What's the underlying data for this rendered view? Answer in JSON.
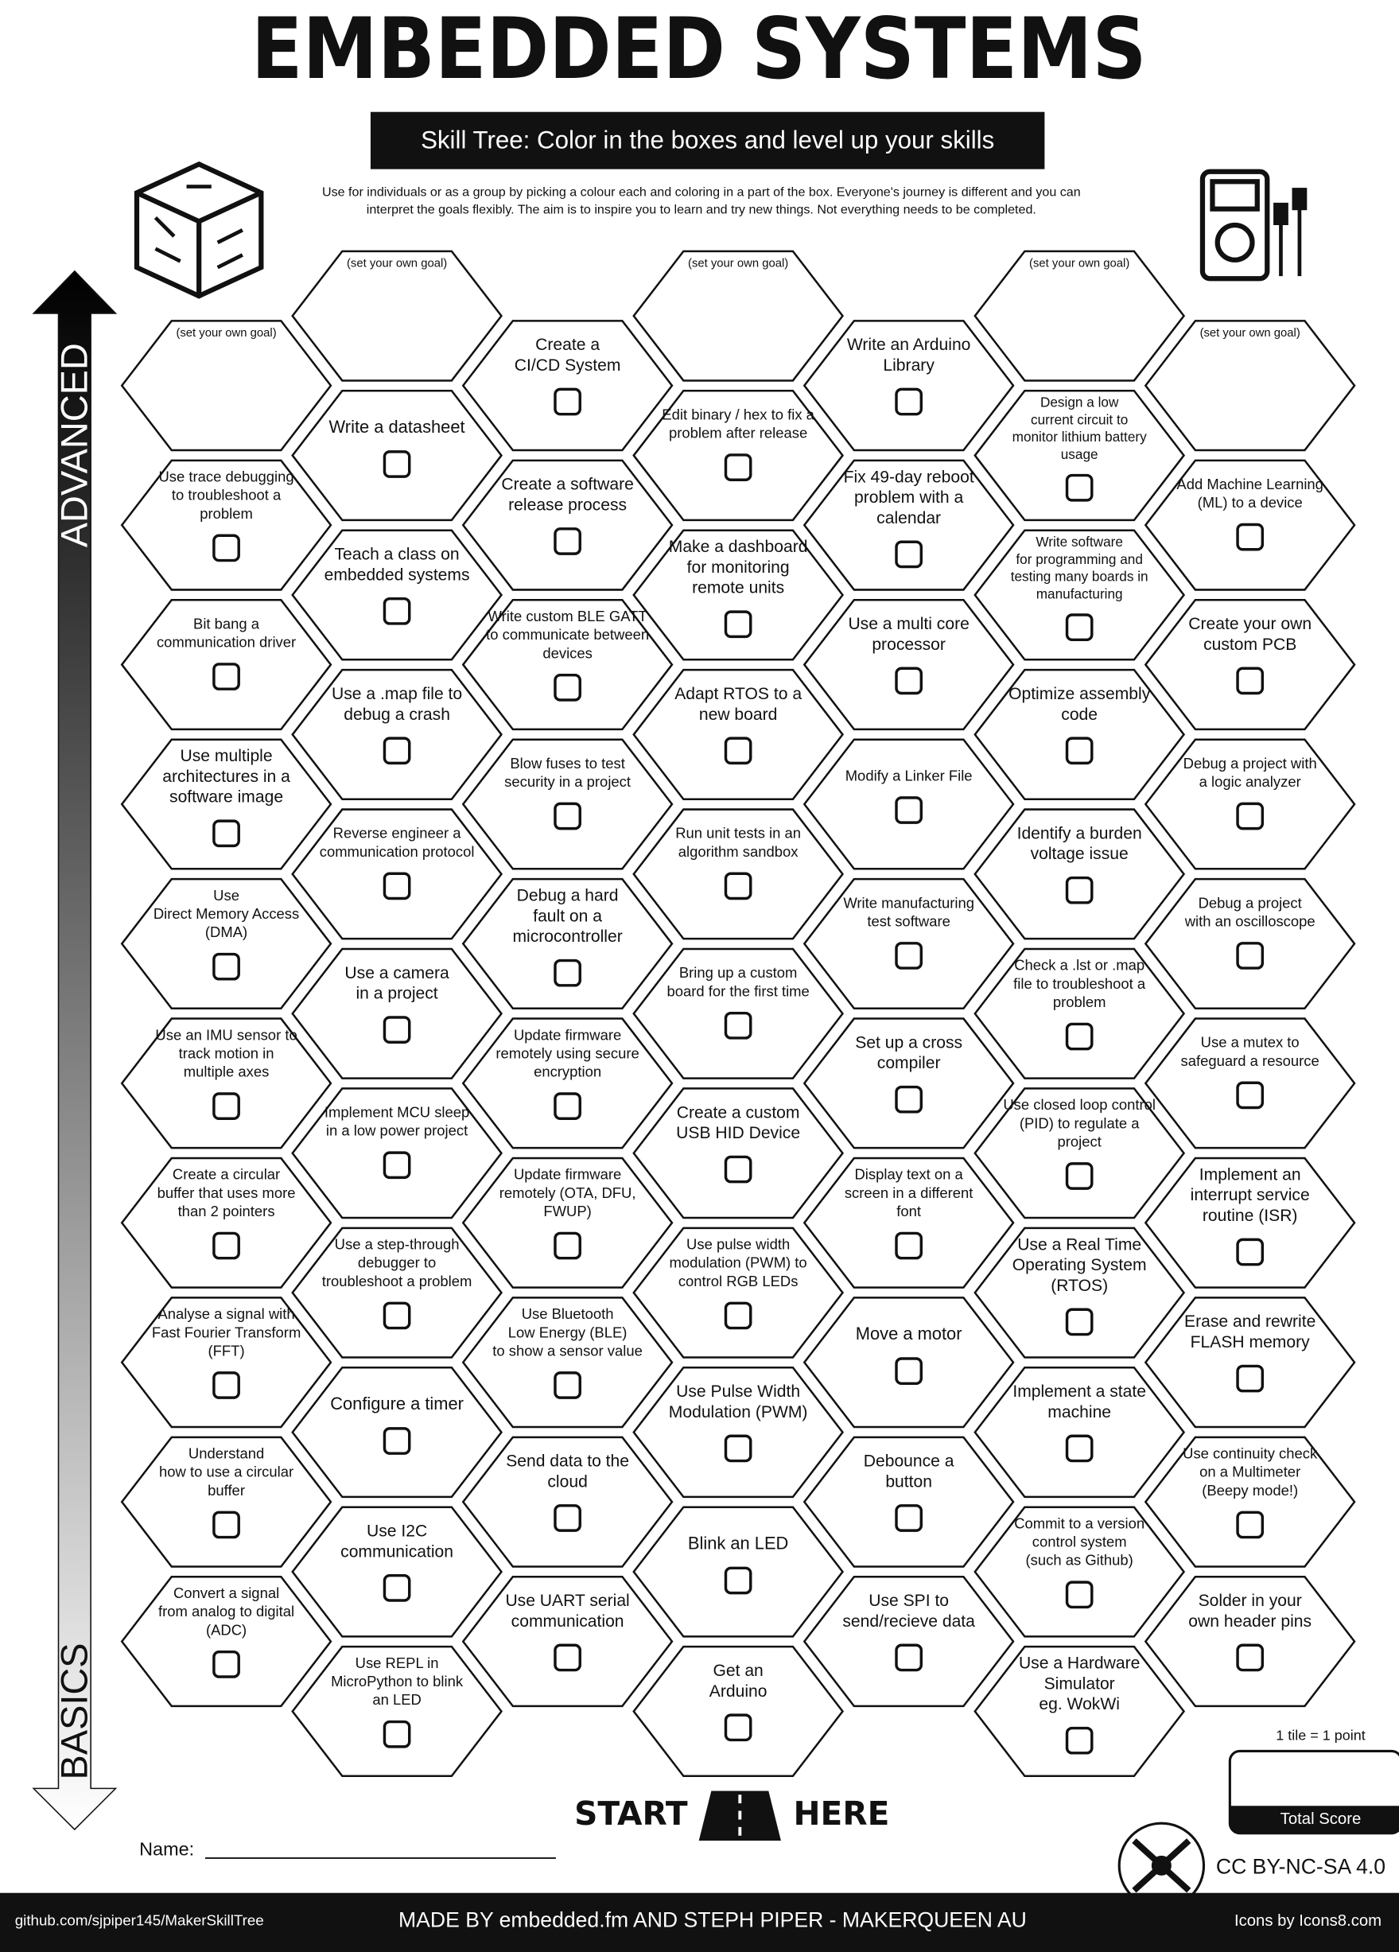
{
  "header": {
    "title": "EMBEDDED SYSTEMS",
    "subtitle": "Skill Tree:  Color in the boxes and level up your skills",
    "intro": [
      "Use for individuals or as a group by picking a colour each and coloring in a part of the box.  Everyone's journey is different and you can",
      "interpret the goals flexibly.  The aim is to inspire you to learn and try new things. Not everything needs to be completed."
    ]
  },
  "side": {
    "advanced": "ADVANCED",
    "basics": "BASICS"
  },
  "columns": [
    {
      "tiles": [
        {
          "note": "(set your own goal)"
        },
        {
          "lines": [
            "Use trace debugging",
            "to troubleshoot a",
            "problem"
          ]
        },
        {
          "lines": [
            "Bit bang a",
            "communication driver"
          ]
        },
        {
          "lines": [
            "Use multiple",
            "architectures in a",
            "software image"
          ]
        },
        {
          "lines": [
            "Use",
            "Direct Memory Access",
            "(DMA)"
          ]
        },
        {
          "lines": [
            "Use an IMU sensor to",
            "track motion in",
            "multiple axes"
          ]
        },
        {
          "lines": [
            "Create a circular",
            "buffer that uses more",
            "than 2 pointers"
          ]
        },
        {
          "lines": [
            "Analyse a signal with",
            "Fast Fourier Transform",
            "(FFT)"
          ]
        },
        {
          "lines": [
            "Understand",
            "how to use a circular",
            "buffer"
          ]
        },
        {
          "lines": [
            "Convert a signal",
            "from analog to digital",
            "(ADC)"
          ]
        }
      ]
    },
    {
      "tiles": [
        {
          "note": "(set your own goal)"
        },
        {
          "lines": [
            "Write a datasheet"
          ]
        },
        {
          "lines": [
            "Teach a class on",
            "embedded systems"
          ]
        },
        {
          "lines": [
            "Use a .map file to",
            "debug a crash"
          ]
        },
        {
          "lines": [
            "Reverse engineer a",
            "communication protocol"
          ]
        },
        {
          "lines": [
            "Use a camera",
            "in a project"
          ]
        },
        {
          "lines": [
            "Implement MCU sleep",
            "in a low power project"
          ]
        },
        {
          "lines": [
            "Use a step-through",
            "debugger to",
            "troubleshoot a problem"
          ]
        },
        {
          "lines": [
            "Configure a timer"
          ]
        },
        {
          "lines": [
            "Use I2C",
            "communication"
          ]
        },
        {
          "lines": [
            "Use REPL in",
            "MicroPython to blink",
            "an LED"
          ]
        }
      ]
    },
    {
      "tiles": [
        {
          "lines": [
            "Create a",
            "CI/CD System"
          ]
        },
        {
          "lines": [
            "Create a software",
            "release process"
          ]
        },
        {
          "lines": [
            "Write custom BLE GATT",
            "to communicate between",
            "devices"
          ]
        },
        {
          "lines": [
            "Blow fuses to test",
            "security in a project"
          ]
        },
        {
          "lines": [
            "Debug a hard",
            "fault on a",
            "microcontroller"
          ]
        },
        {
          "lines": [
            "Update firmware",
            "remotely using secure",
            "encryption"
          ]
        },
        {
          "lines": [
            "Update firmware",
            "remotely (OTA, DFU,",
            "FWUP)"
          ]
        },
        {
          "lines": [
            "Use Bluetooth",
            "Low Energy (BLE)",
            "to show a sensor value"
          ]
        },
        {
          "lines": [
            "Send data to the",
            "cloud"
          ]
        },
        {
          "lines": [
            "Use UART serial",
            "communication"
          ]
        }
      ]
    },
    {
      "tiles": [
        {
          "note": "(set your own goal)"
        },
        {
          "lines": [
            "Edit binary / hex to fix a",
            "problem after release"
          ]
        },
        {
          "lines": [
            "Make a dashboard",
            "for monitoring",
            "remote units"
          ]
        },
        {
          "lines": [
            "Adapt RTOS to a",
            "new board"
          ]
        },
        {
          "lines": [
            "Run unit tests in an",
            "algorithm sandbox"
          ]
        },
        {
          "lines": [
            "Bring up a custom",
            "board for the first time"
          ]
        },
        {
          "lines": [
            "Create a custom",
            "USB HID Device"
          ]
        },
        {
          "lines": [
            "Use pulse width",
            "modulation (PWM) to",
            "control RGB LEDs"
          ]
        },
        {
          "lines": [
            "Use Pulse Width",
            "Modulation (PWM)"
          ]
        },
        {
          "lines": [
            "Blink an LED"
          ]
        },
        {
          "lines": [
            "Get an",
            "Arduino"
          ]
        }
      ]
    },
    {
      "tiles": [
        {
          "lines": [
            "Write an Arduino",
            "Library"
          ]
        },
        {
          "lines": [
            "Fix 49-day reboot",
            "problem with a",
            "calendar"
          ]
        },
        {
          "lines": [
            "Use a multi core",
            "processor"
          ]
        },
        {
          "lines": [
            "Modify a Linker File"
          ]
        },
        {
          "lines": [
            "Write manufacturing",
            "test software"
          ]
        },
        {
          "lines": [
            "Set up a cross",
            "compiler"
          ]
        },
        {
          "lines": [
            "Display text on a",
            "screen in a different",
            "font"
          ]
        },
        {
          "lines": [
            "Move a motor"
          ]
        },
        {
          "lines": [
            "Debounce a",
            "button"
          ]
        },
        {
          "lines": [
            "Use SPI to",
            "send/recieve data"
          ]
        }
      ]
    },
    {
      "tiles": [
        {
          "note": "(set your own goal)"
        },
        {
          "lines": [
            "Design a low",
            "current circuit to",
            "monitor lithium battery",
            "usage"
          ]
        },
        {
          "lines": [
            "Write software",
            "for programming and",
            "testing many boards in",
            "manufacturing"
          ]
        },
        {
          "lines": [
            "Optimize assembly",
            "code"
          ]
        },
        {
          "lines": [
            "Identify a burden",
            "voltage issue"
          ]
        },
        {
          "lines": [
            "Check a .lst or .map",
            "file to troubleshoot a",
            "problem"
          ]
        },
        {
          "lines": [
            "Use closed loop control",
            "(PID) to regulate a",
            "project"
          ]
        },
        {
          "lines": [
            "Use a Real Time",
            "Operating System",
            "(RTOS)"
          ]
        },
        {
          "lines": [
            "Implement a state",
            "machine"
          ]
        },
        {
          "lines": [
            "Commit to a version",
            "control system",
            "(such as Github)"
          ]
        },
        {
          "lines": [
            "Use a Hardware",
            "Simulator",
            "eg. WokWi"
          ]
        }
      ]
    },
    {
      "tiles": [
        {
          "note": "(set your own goal)"
        },
        {
          "lines": [
            "Add Machine Learning",
            "(ML) to a device"
          ]
        },
        {
          "lines": [
            "Create your own",
            "custom PCB"
          ]
        },
        {
          "lines": [
            "Debug a project with",
            "a logic analyzer"
          ]
        },
        {
          "lines": [
            "Debug a project",
            "with an oscilloscope"
          ]
        },
        {
          "lines": [
            "Use a mutex to",
            "safeguard a resource"
          ]
        },
        {
          "lines": [
            "Implement an",
            "interrupt service",
            "routine (ISR)"
          ]
        },
        {
          "lines": [
            "Erase and rewrite",
            "FLASH memory"
          ]
        },
        {
          "lines": [
            "Use continuity check",
            "on a Multimeter",
            "(Beepy mode!)"
          ]
        },
        {
          "lines": [
            "Solder in your",
            "own header pins"
          ]
        }
      ]
    }
  ],
  "footer": {
    "start": "START",
    "here": "HERE",
    "name_label": "Name:",
    "score_rule": "1 tile = 1 point",
    "score_label": "Total Score",
    "license": "CC BY-NC-SA 4.0",
    "credit_left": "github.com/sjpiper145/MakerSkillTree",
    "credit_center": "MADE BY embedded.fm AND STEPH PIPER  -  MAKERQUEEN AU",
    "credit_right": "Icons by Icons8.com"
  }
}
